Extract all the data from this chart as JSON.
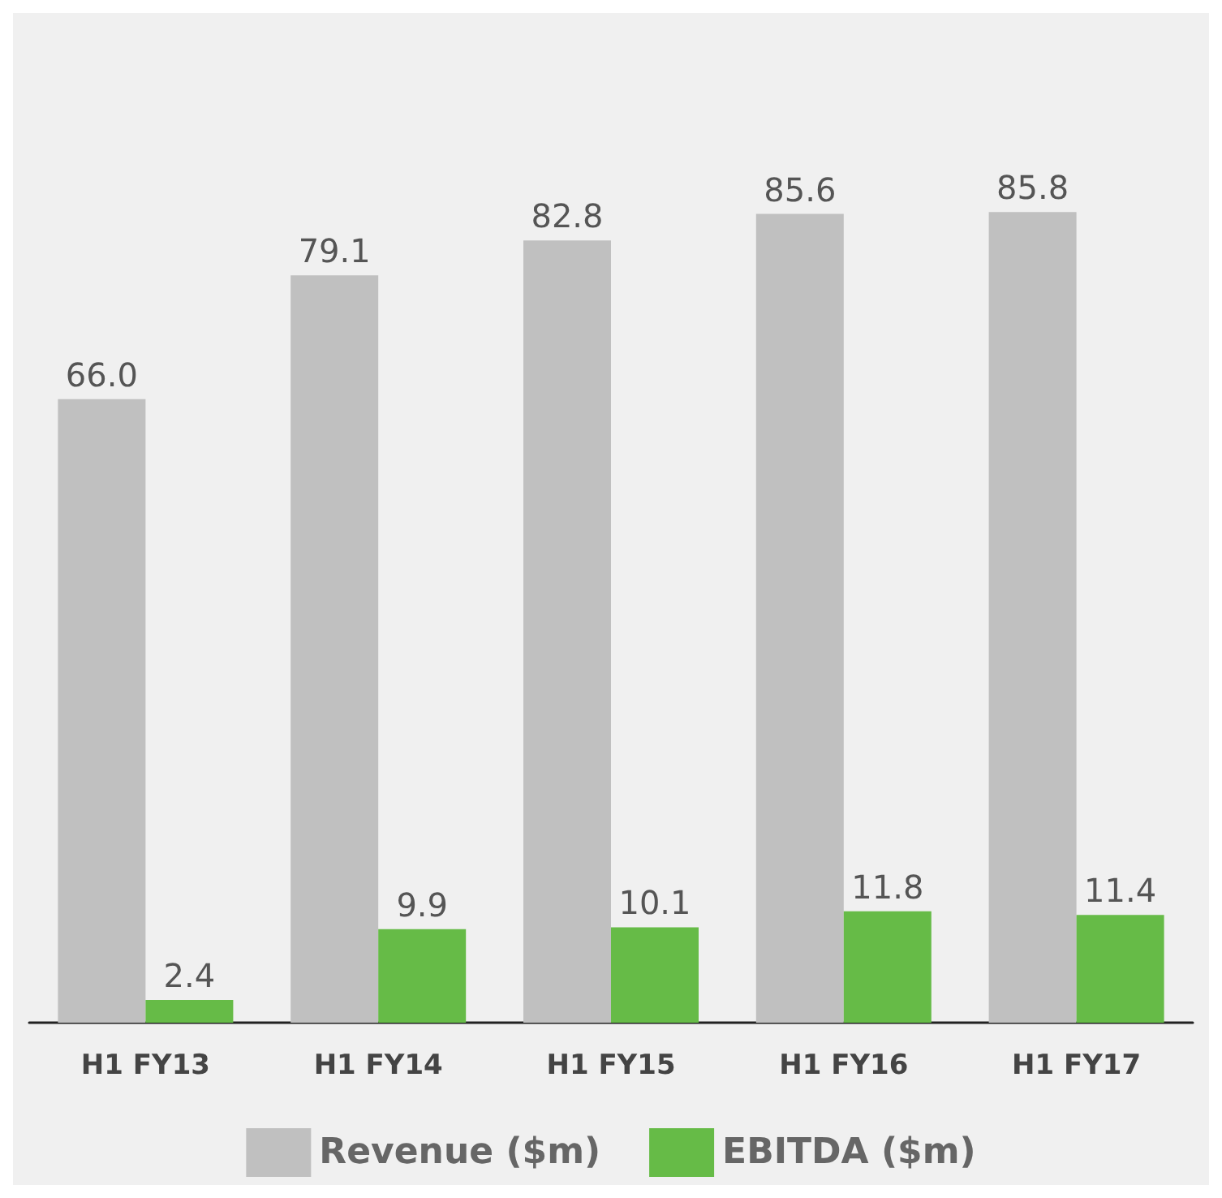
{
  "chart_data": {
    "type": "bar",
    "categories": [
      "H1 FY13",
      "H1 FY14",
      "H1 FY15",
      "H1 FY16",
      "H1 FY17"
    ],
    "series": [
      {
        "name": "Revenue ($m)",
        "color": "#c0c0c0",
        "values": [
          66.0,
          79.1,
          82.8,
          85.6,
          85.8
        ],
        "value_labels": [
          "66.0",
          "79.1",
          "82.8",
          "85.6",
          "85.8"
        ]
      },
      {
        "name": "EBITDA ($m)",
        "color": "#66bb47",
        "values": [
          2.4,
          9.9,
          10.1,
          11.8,
          11.4
        ],
        "value_labels": [
          "2.4",
          "9.9",
          "10.1",
          "11.8",
          "11.4"
        ]
      }
    ],
    "legend": "bottom",
    "grid": false
  }
}
